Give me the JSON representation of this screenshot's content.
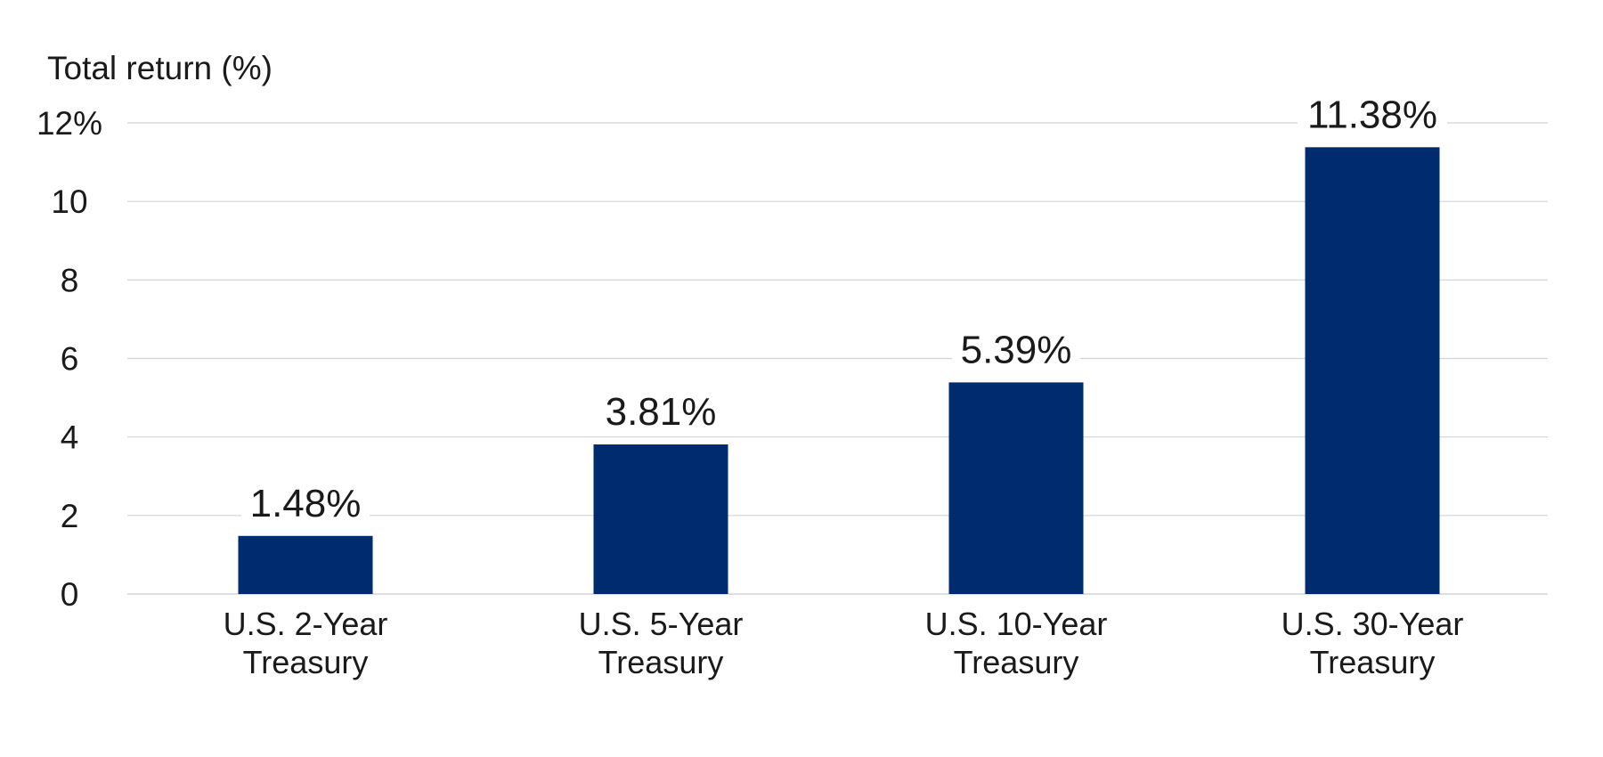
{
  "chart_data": {
    "type": "bar",
    "title": "",
    "ylabel": "Total return (%)",
    "xlabel": "",
    "categories": [
      [
        "U.S. 2-Year",
        "Treasury"
      ],
      [
        "U.S. 5-Year",
        "Treasury"
      ],
      [
        "U.S. 10-Year",
        "Treasury"
      ],
      [
        "U.S. 30-Year",
        "Treasury"
      ]
    ],
    "values": [
      1.48,
      3.81,
      5.39,
      11.38
    ],
    "value_labels": [
      "1.48%",
      "3.81%",
      "5.39%",
      "11.38%"
    ],
    "ylim": [
      0,
      12
    ],
    "yticks": [
      0,
      2,
      4,
      6,
      8,
      10,
      12
    ],
    "ytick_labels": [
      "0",
      "2",
      "4",
      "6",
      "8",
      "10",
      "12%"
    ],
    "grid": true,
    "legend": "none",
    "bar_color": "#002B6E",
    "grid_color": "#D0D3D8"
  }
}
